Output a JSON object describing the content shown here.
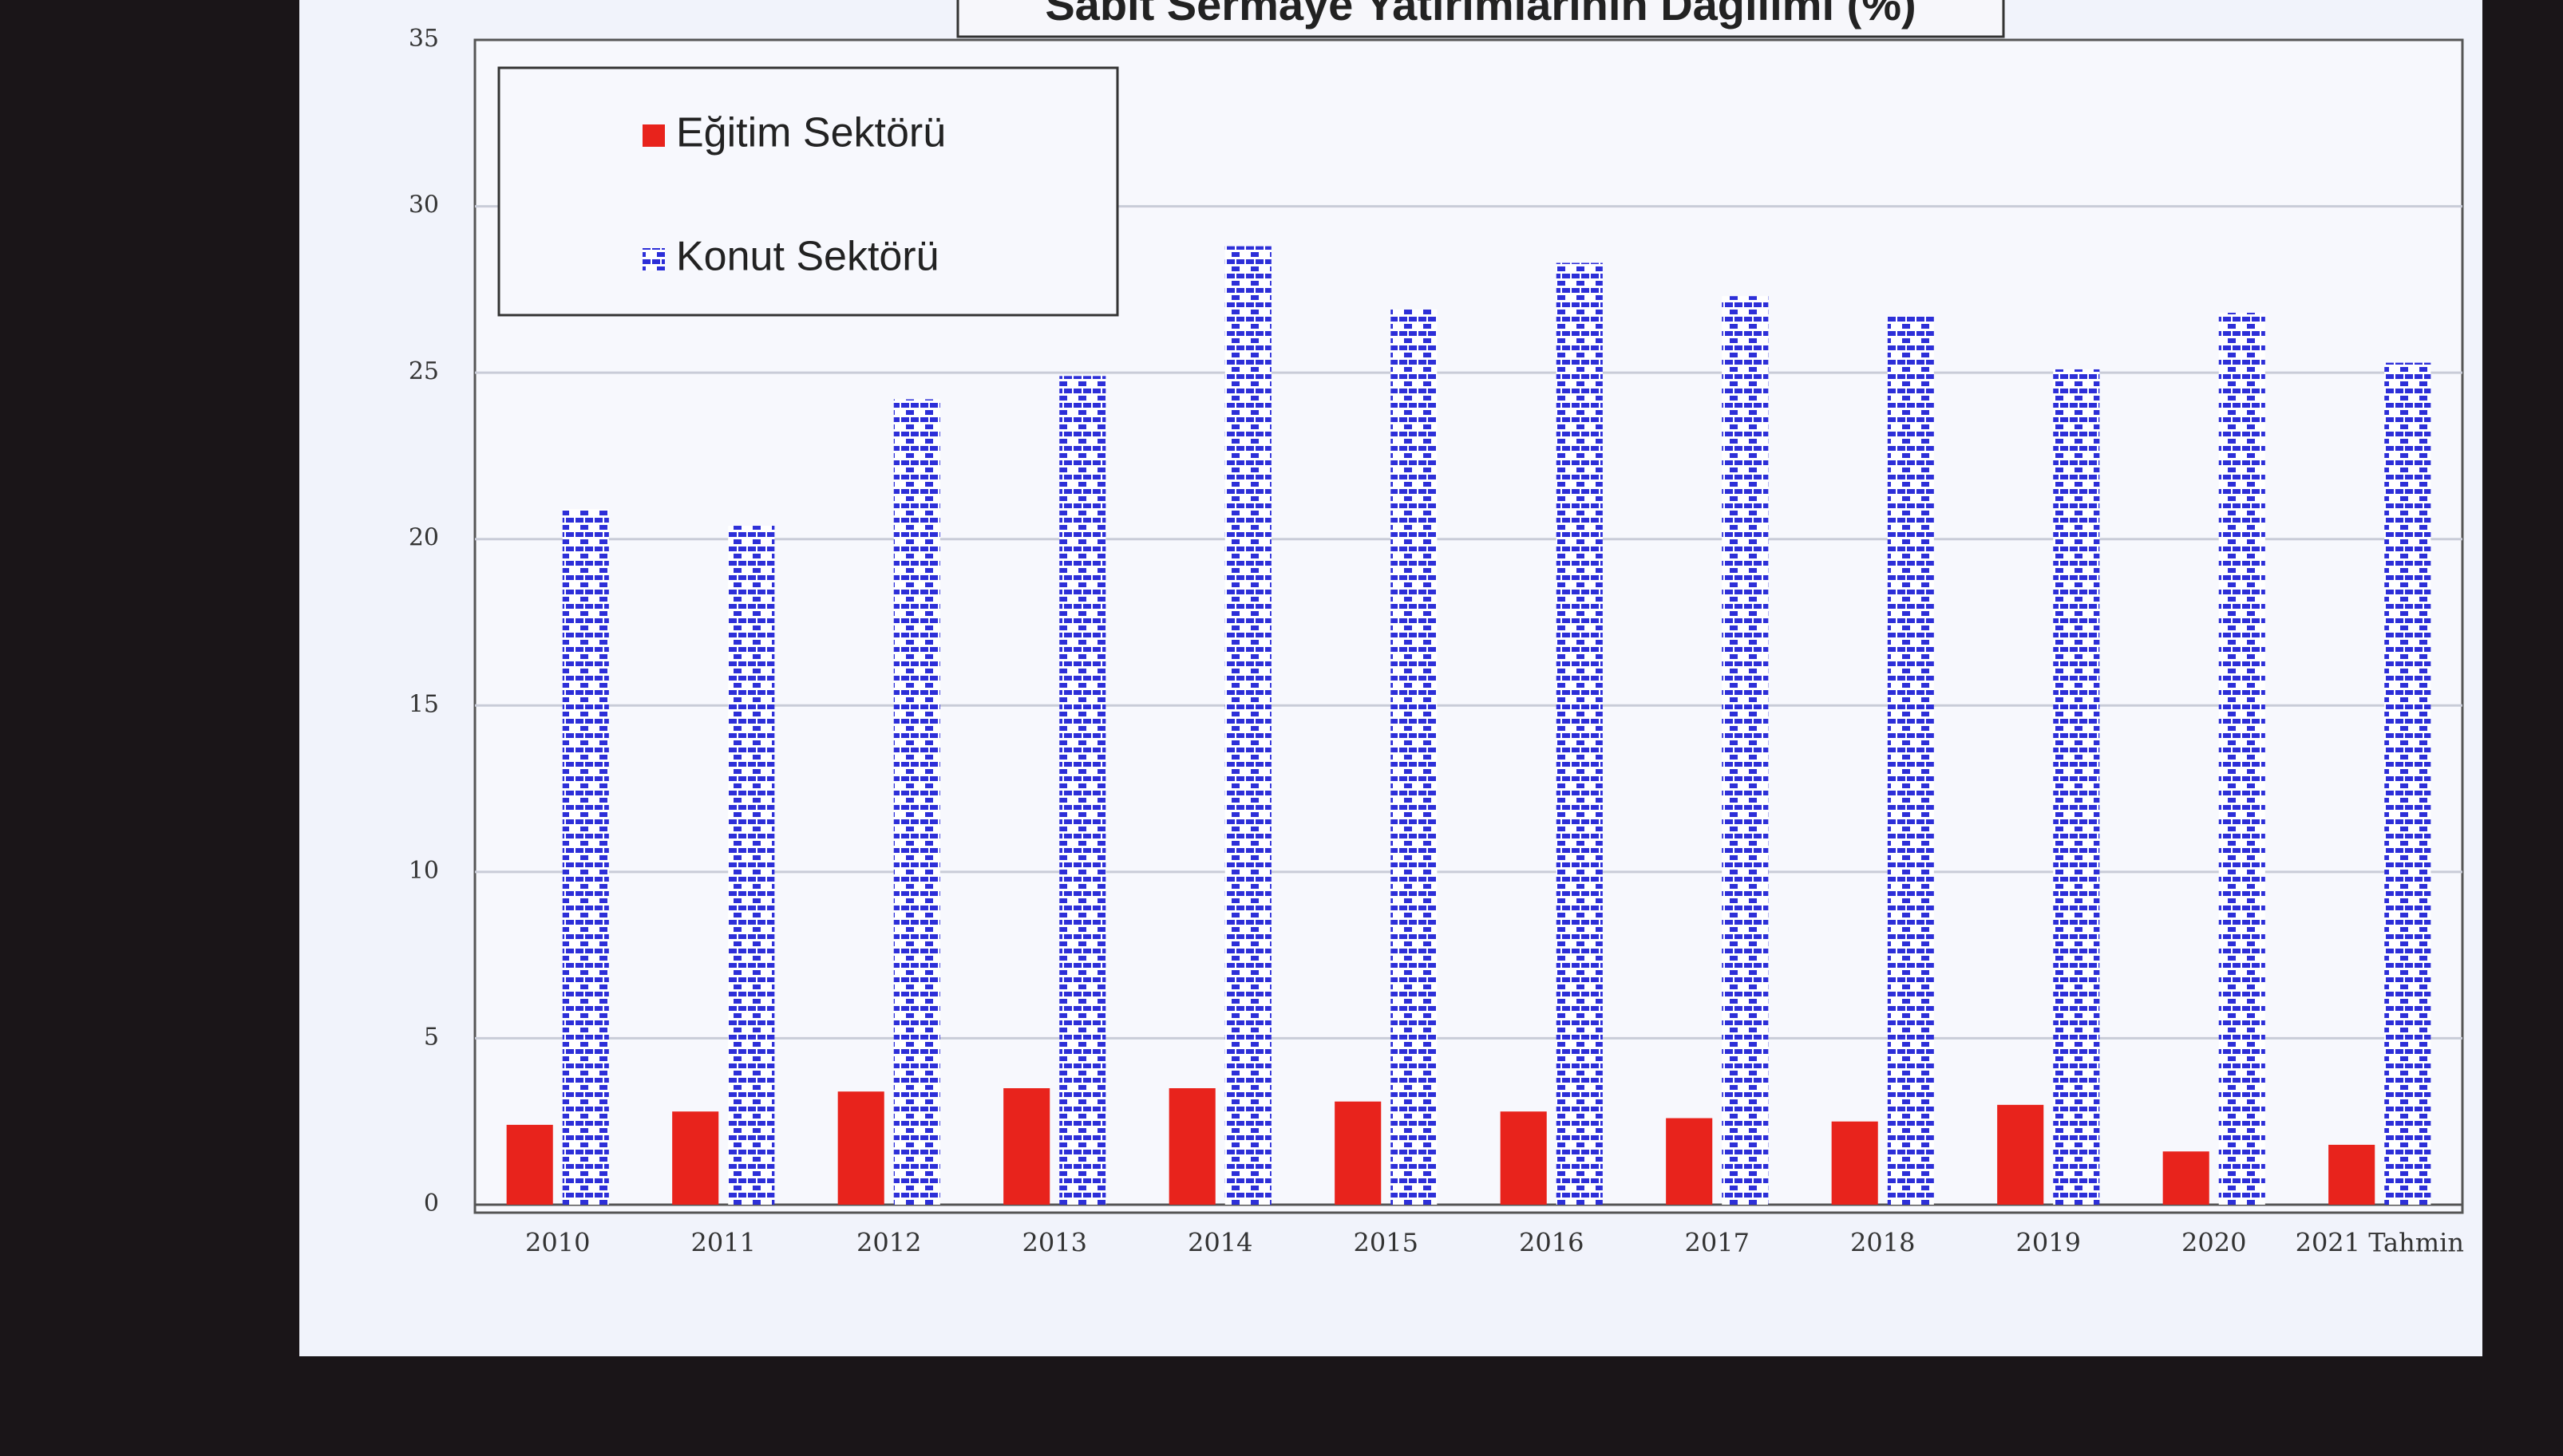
{
  "chart_data": {
    "type": "bar",
    "title": "Sabit Sermaye Yatırımlarının Dağılımı (%)",
    "categories": [
      "2010",
      "2011",
      "2012",
      "2013",
      "2014",
      "2015",
      "2016",
      "2017",
      "2018",
      "2019",
      "2020",
      "2021 Tahmin"
    ],
    "series": [
      {
        "name": "Eğitim Sektörü",
        "color": "#e8231c",
        "values": [
          2.4,
          2.8,
          3.4,
          3.5,
          3.5,
          3.1,
          2.8,
          2.6,
          2.5,
          3.0,
          1.6,
          1.8
        ]
      },
      {
        "name": "Konut Sektörü",
        "color": "#2d2fd8",
        "values": [
          20.9,
          20.4,
          24.2,
          24.9,
          28.8,
          26.9,
          28.3,
          27.3,
          26.7,
          25.1,
          26.8,
          25.3
        ]
      }
    ],
    "ylim": [
      0,
      35
    ],
    "yticks": [
      0,
      5,
      10,
      15,
      20,
      25,
      30,
      35
    ],
    "grid": true,
    "legend": "upper-left"
  }
}
